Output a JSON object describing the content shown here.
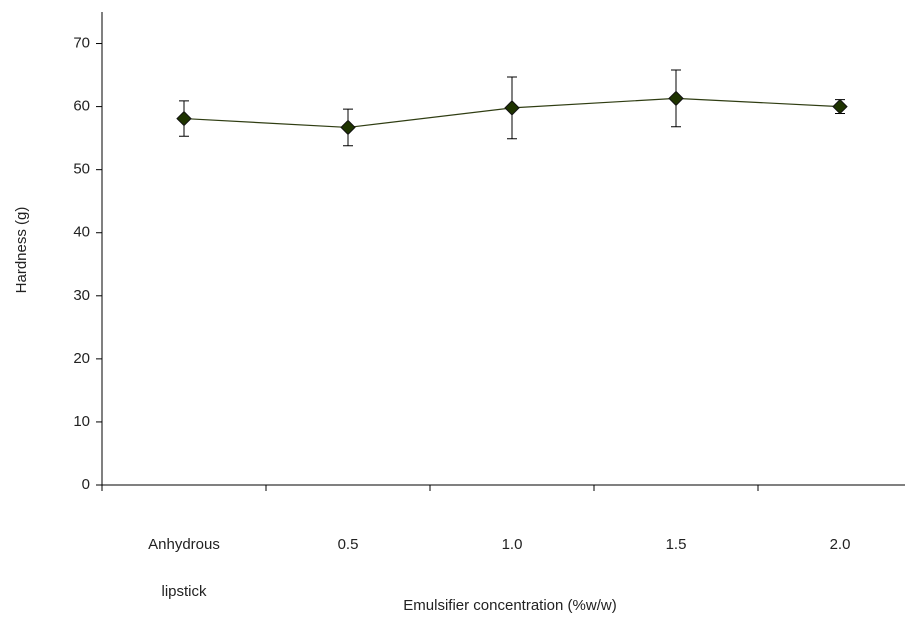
{
  "chart_data": {
    "type": "line",
    "x_label": "Emulsifier concentration (%w/w)",
    "y_label": "Hardness (g)",
    "categories": [
      "Anhydrous lipstick",
      "0.5",
      "1.0",
      "1.5",
      "2.0"
    ],
    "series": [
      {
        "color": "#2f3d12",
        "values": [
          58.1,
          56.7,
          59.8,
          61.3,
          60.0
        ],
        "errors": [
          2.8,
          2.9,
          4.9,
          4.5,
          1.1
        ]
      }
    ],
    "ylim": [
      0,
      75
    ],
    "yticks": [
      0,
      10,
      20,
      30,
      40,
      50,
      60,
      70
    ],
    "grid": false
  }
}
